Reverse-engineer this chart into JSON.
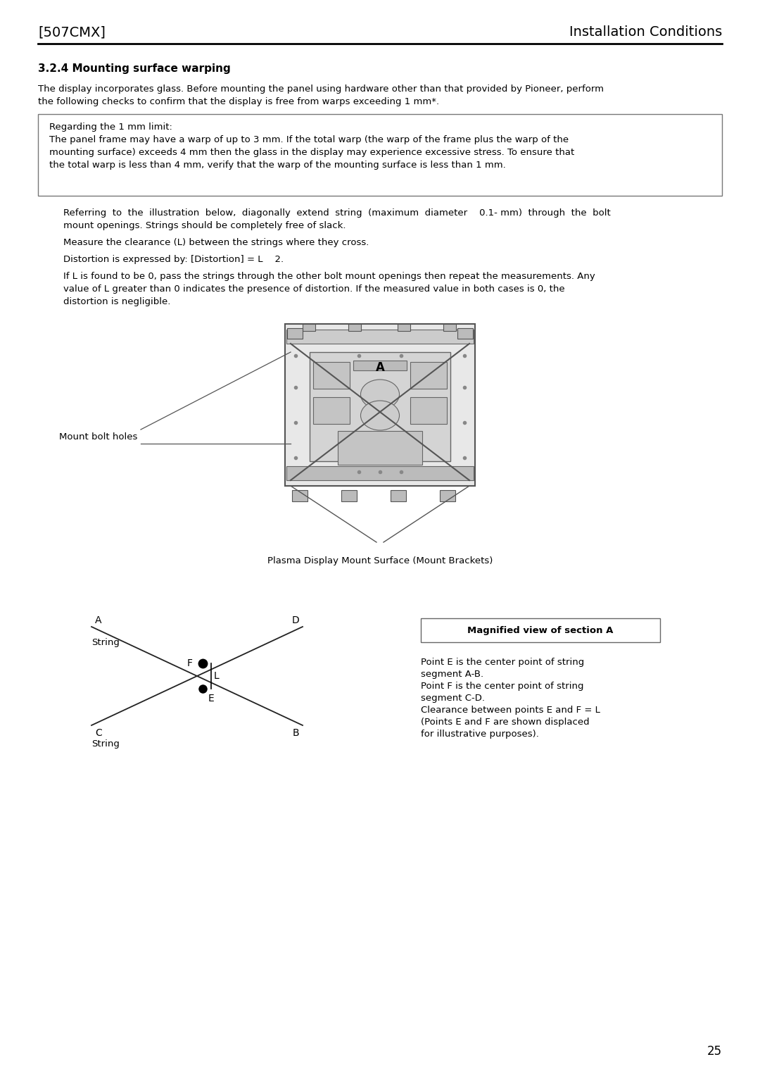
{
  "page_header_left": "[507CMX]",
  "page_header_right": "Installation Conditions",
  "section_title": "3.2.4 Mounting surface warping",
  "intro_line1": "The display incorporates glass. Before mounting the panel using hardware other than that provided by Pioneer, perform",
  "intro_line2": "the following checks to confirm that the display is free from warps exceeding 1 mm*.",
  "box_line1": "Regarding the 1 mm limit:",
  "box_line2": "The panel frame may have a warp of up to 3 mm. If the total warp (the warp of the frame plus the warp of the",
  "box_line3": "mounting surface) exceeds 4 mm then the glass in the display may experience excessive stress. To ensure that",
  "box_line4": "the total warp is less than 4 mm, verify that the warp of the mounting surface is less than 1 mm.",
  "body_line1": "Referring  to  the  illustration  below,  diagonally  extend  string  (maximum  diameter    0.1- mm)  through  the  bolt",
  "body_line2": "mount openings. Strings should be completely free of slack.",
  "body_line3": "Measure the clearance (L) between the strings where they cross.",
  "body_line4": "Distortion is expressed by: [Distortion] = L    2.",
  "body_line5": "If L is found to be 0, pass the strings through the other bolt mount openings then repeat the measurements. Any",
  "body_line6": "value of L greater than 0 indicates the presence of distortion. If the measured value in both cases is 0, the",
  "body_line7": "distortion is negligible.",
  "diagram_caption": "Plasma Display Mount Surface (Mount Brackets)",
  "mount_bolt_label": "Mount bolt holes",
  "magnified_box_title": "Magnified view of section A",
  "desc_line1": "Point E is the center point of string",
  "desc_line2": "segment A-B.",
  "desc_line3": "Point F is the center point of string",
  "desc_line4": "segment C-D.",
  "desc_line5": "Clearance between points E and F = L",
  "desc_line6": "(Points E and F are shown displaced",
  "desc_line7": "for illustrative purposes).",
  "page_number": "25",
  "bg_color": "#ffffff",
  "text_color": "#000000",
  "gray_light": "#e0e0e0",
  "gray_mid": "#c0c0c0",
  "gray_dark": "#888888",
  "border_color": "#444444"
}
